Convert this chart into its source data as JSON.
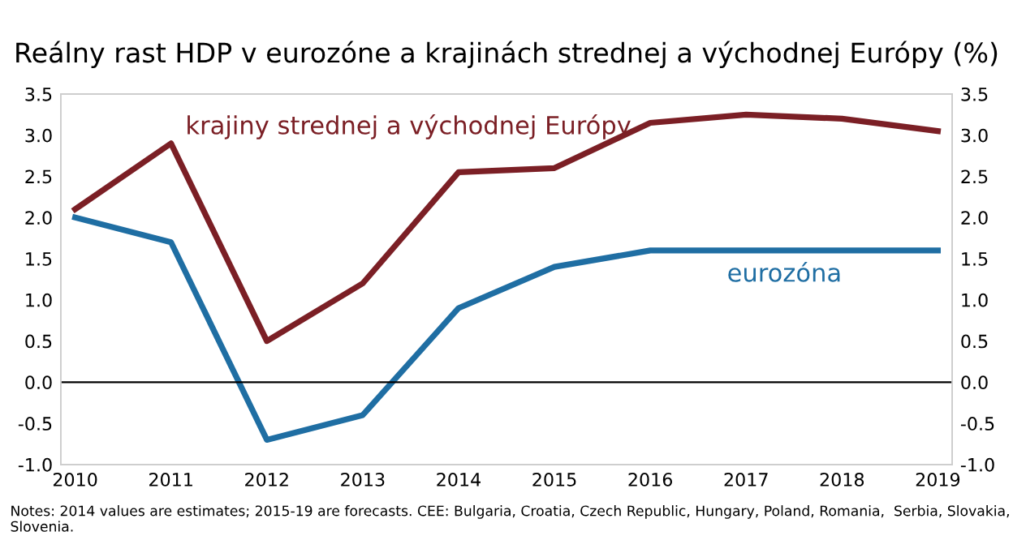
{
  "chart_data": {
    "type": "line",
    "title": "Reálny rast HDP v eurozóne a krajinách strednej a východnej Európy (%)",
    "categories": [
      "2010",
      "2011",
      "2012",
      "2013",
      "2014",
      "2015",
      "2016",
      "2017",
      "2018",
      "2019"
    ],
    "series": [
      {
        "name": "krajiny strednej a východnej Európy",
        "color": "#7b1f25",
        "values": [
          2.1,
          2.9,
          0.5,
          1.2,
          2.55,
          2.6,
          3.15,
          3.25,
          3.2,
          3.05
        ]
      },
      {
        "name": "eurozóna",
        "color": "#1f6ea3",
        "values": [
          2.0,
          1.7,
          -0.7,
          -0.4,
          0.9,
          1.4,
          1.6,
          1.6,
          1.6,
          1.6
        ]
      }
    ],
    "ylim": [
      -1.0,
      3.5
    ],
    "yticks": [
      {
        "value": -1.0,
        "label": "-1.0"
      },
      {
        "value": -0.5,
        "label": "-0.5"
      },
      {
        "value": 0,
        "label": "0.0"
      },
      {
        "value": 0.5,
        "label": "0.5"
      },
      {
        "value": 1.0,
        "label": "1.0"
      },
      {
        "value": 1.5,
        "label": "1.5"
      },
      {
        "value": 2.0,
        "label": "2.0"
      },
      {
        "value": 2.5,
        "label": "2.5"
      },
      {
        "value": 3.0,
        "label": "3.0"
      },
      {
        "value": 3.5,
        "label": "3.5"
      }
    ],
    "y2lim": [
      -1.0,
      3.5
    ],
    "y2ticks": [
      {
        "value": -1.0,
        "label": "-1.0"
      },
      {
        "value": -0.5,
        "label": "-0.5"
      },
      {
        "value": 0,
        "label": "0.0"
      },
      {
        "value": 0.5,
        "label": "0.5"
      },
      {
        "value": 1.0,
        "label": "1.0"
      },
      {
        "value": 1.5,
        "label": "1.5"
      },
      {
        "value": 2.0,
        "label": "2.0"
      },
      {
        "value": 2.5,
        "label": "2.5"
      },
      {
        "value": 3.0,
        "label": "3.0"
      },
      {
        "value": 3.5,
        "label": "3.5"
      }
    ],
    "ref_lines": [
      {
        "axis": "y",
        "value": 0,
        "color": "#000000"
      }
    ],
    "grid": false,
    "marker": "none",
    "line_style": "solid",
    "annotations": [
      "Notes: 2014 values are estimates; 2015-19 are forecasts. CEE: Bulgaria, Croatia, Czech Republic, Hungary, Poland, Romania,  Serbia, Slovakia, Slovenia."
    ]
  }
}
